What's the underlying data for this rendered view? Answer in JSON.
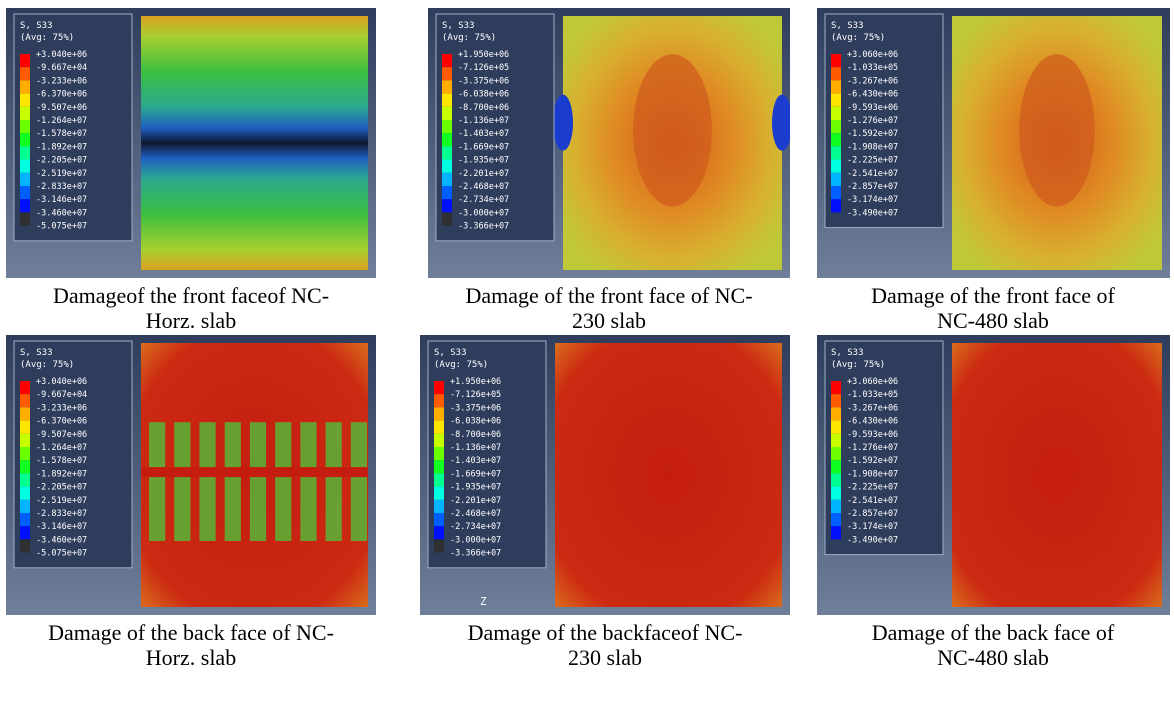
{
  "panels": [
    {
      "legend": {
        "title": "S, S33",
        "subtitle": "(Avg: 75%)",
        "values": [
          "+3.040e+06",
          "-9.667e+04",
          "-3.233e+06",
          "-6.370e+06",
          "-9.507e+06",
          "-1.264e+07",
          "-1.578e+07",
          "-1.892e+07",
          "-2.205e+07",
          "-2.519e+07",
          "-2.833e+07",
          "-3.146e+07",
          "-3.460e+07",
          "-5.075e+07"
        ]
      },
      "caption": [
        "Damageof the front faceof NC-",
        "Horz. slab"
      ]
    },
    {
      "legend": {
        "title": "S, S33",
        "subtitle": "(Avg: 75%)",
        "values": [
          "+1.950e+06",
          "-7.126e+05",
          "-3.375e+06",
          "-6.038e+06",
          "-8.700e+06",
          "-1.136e+07",
          "-1.403e+07",
          "-1.669e+07",
          "-1.935e+07",
          "-2.201e+07",
          "-2.468e+07",
          "-2.734e+07",
          "-3.000e+07",
          "-3.366e+07"
        ]
      },
      "caption": [
        "Damage of the front face of NC-",
        "230 slab"
      ]
    },
    {
      "legend": {
        "title": "S, S33",
        "subtitle": "(Avg: 75%)",
        "values": [
          "+3.060e+06",
          "-1.033e+05",
          "-3.267e+06",
          "-6.430e+06",
          "-9.593e+06",
          "-1.276e+07",
          "-1.592e+07",
          "-1.908e+07",
          "-2.225e+07",
          "-2.541e+07",
          "-2.857e+07",
          "-3.174e+07",
          "-3.490e+07"
        ]
      },
      "caption": [
        "Damage of the front face of",
        "NC-480 slab"
      ]
    },
    {
      "legend": {
        "title": "S, S33",
        "subtitle": "(Avg: 75%)",
        "values": [
          "+3.040e+06",
          "-9.667e+04",
          "-3.233e+06",
          "-6.370e+06",
          "-9.507e+06",
          "-1.264e+07",
          "-1.578e+07",
          "-1.892e+07",
          "-2.205e+07",
          "-2.519e+07",
          "-2.833e+07",
          "-3.146e+07",
          "-3.460e+07",
          "-5.075e+07"
        ]
      },
      "caption": [
        "Damage of the back face of NC-",
        "Horz. slab"
      ]
    },
    {
      "legend": {
        "title": "S, S33",
        "subtitle": "(Avg: 75%)",
        "values": [
          "+1.950e+06",
          "-7.126e+05",
          "-3.375e+06",
          "-6.038e+06",
          "-8.700e+06",
          "-1.136e+07",
          "-1.403e+07",
          "-1.669e+07",
          "-1.935e+07",
          "-2.201e+07",
          "-2.468e+07",
          "-2.734e+07",
          "-3.000e+07",
          "-3.366e+07"
        ]
      },
      "axis_label": "Z",
      "caption": [
        "Damage of the backfaceof NC-",
        "230 slab"
      ]
    },
    {
      "legend": {
        "title": "S, S33",
        "subtitle": "(Avg: 75%)",
        "values": [
          "+3.060e+06",
          "-1.033e+05",
          "-3.267e+06",
          "-6.430e+06",
          "-9.593e+06",
          "-1.276e+07",
          "-1.592e+07",
          "-1.908e+07",
          "-2.225e+07",
          "-2.541e+07",
          "-2.857e+07",
          "-3.174e+07",
          "-3.490e+07"
        ]
      },
      "caption": [
        "Damage of the back face of",
        "NC-480 slab"
      ]
    }
  ]
}
